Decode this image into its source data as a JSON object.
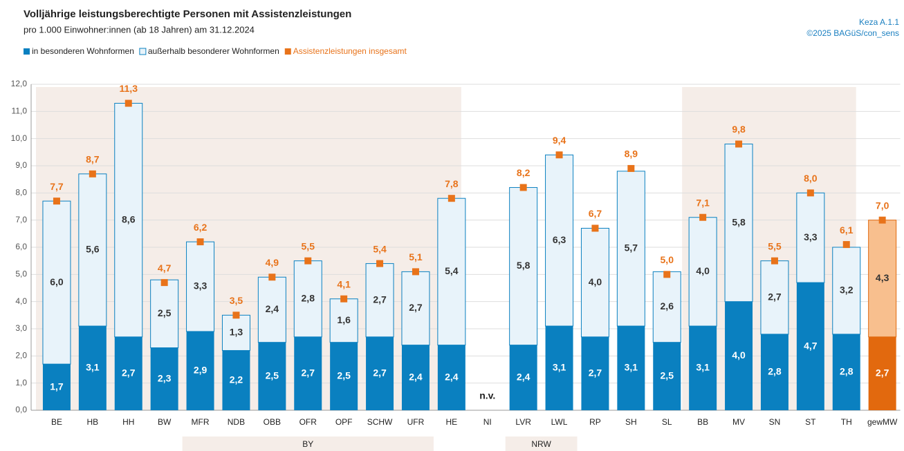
{
  "chart_data": {
    "type": "stacked_bar",
    "title": "Volljährige leistungsberechtigte Personen mit Assistenzleistungen",
    "subtitle": "pro 1.000 Einwohner:innen (ab 18 Jahren) am 31.12.2024",
    "source": [
      "Keza A.1.1",
      "©2025 BAGüS/con_sens"
    ],
    "categories": [
      "BE",
      "HB",
      "HH",
      "BW",
      "MFR",
      "NDB",
      "OBB",
      "OFR",
      "OPF",
      "SCHW",
      "UFR",
      "HE",
      "NI",
      "LVR",
      "LWL",
      "RP",
      "SH",
      "SL",
      "BB",
      "MV",
      "SN",
      "ST",
      "TH",
      "gewMW"
    ],
    "groups": [
      {
        "label": "BY",
        "from": "MFR",
        "to": "UFR"
      },
      {
        "label": "NRW",
        "from": "LVR",
        "to": "LWL"
      }
    ],
    "annotations": [
      {
        "text": "n.v.",
        "category": "NI"
      }
    ],
    "series": [
      {
        "name": "in besonderen Wohnformen",
        "color": "#0a80c0",
        "colors": [
          "#0a80c0",
          "#0a80c0",
          "#0a80c0",
          "#0a80c0",
          "#0a80c0",
          "#0a80c0",
          "#0a80c0",
          "#0a80c0",
          "#0a80c0",
          "#0a80c0",
          "#0a80c0",
          "#0a80c0",
          "#0a80c0",
          "#0a80c0",
          "#0a80c0",
          "#0a80c0",
          "#0a80c0",
          "#0a80c0",
          "#0a80c0",
          "#0a80c0",
          "#0a80c0",
          "#0a80c0",
          "#0a80c0",
          "#e2690e"
        ],
        "values": [
          1.7,
          3.1,
          2.7,
          2.3,
          2.9,
          2.2,
          2.5,
          2.7,
          2.5,
          2.7,
          2.4,
          2.4,
          null,
          2.4,
          3.1,
          2.7,
          3.1,
          2.5,
          3.1,
          4.0,
          2.8,
          4.7,
          2.8,
          2.7
        ],
        "value_labels": [
          "1,7",
          "3,1",
          "2,7",
          "2,3",
          "2,9",
          "2,2",
          "2,5",
          "2,7",
          "2,5",
          "2,7",
          "2,4",
          "2,4",
          null,
          "2,4",
          "3,1",
          "2,7",
          "3,1",
          "2,5",
          "3,1",
          "4,0",
          "2,8",
          "4,7",
          "2,8",
          "2,7"
        ]
      },
      {
        "name": "außerhalb besonderer Wohnformen",
        "color": "#e8f3fa",
        "colors": [
          "#e8f3fa",
          "#e8f3fa",
          "#e8f3fa",
          "#e8f3fa",
          "#e8f3fa",
          "#e8f3fa",
          "#e8f3fa",
          "#e8f3fa",
          "#e8f3fa",
          "#e8f3fa",
          "#e8f3fa",
          "#e8f3fa",
          "#e8f3fa",
          "#e8f3fa",
          "#e8f3fa",
          "#e8f3fa",
          "#e8f3fa",
          "#e8f3fa",
          "#e8f3fa",
          "#e8f3fa",
          "#e8f3fa",
          "#e8f3fa",
          "#e8f3fa",
          "#f8bf8e"
        ],
        "values": [
          6.0,
          5.6,
          8.6,
          2.5,
          3.3,
          1.3,
          2.4,
          2.8,
          1.6,
          2.7,
          2.7,
          5.4,
          null,
          5.8,
          6.3,
          4.0,
          5.7,
          2.6,
          4.0,
          5.8,
          2.7,
          3.3,
          3.2,
          4.3
        ],
        "value_labels": [
          "6,0",
          "5,6",
          "8,6",
          "2,5",
          "3,3",
          "1,3",
          "2,4",
          "2,8",
          "1,6",
          "2,7",
          "2,7",
          "5,4",
          null,
          "5,8",
          "6,3",
          "4,0",
          "5,7",
          "2,6",
          "4,0",
          "5,8",
          "2,7",
          "3,3",
          "3,2",
          "4,3"
        ]
      },
      {
        "name": "Assistenzleistungen insgesamt",
        "color": "#e8731a",
        "type": "marker",
        "values": [
          7.7,
          8.7,
          11.3,
          4.7,
          6.2,
          3.5,
          4.9,
          5.5,
          4.1,
          5.4,
          5.1,
          7.8,
          null,
          8.2,
          9.4,
          6.7,
          8.9,
          5.0,
          7.1,
          9.8,
          5.5,
          8.0,
          6.1,
          7.0
        ],
        "value_labels": [
          "7,7",
          "8,7",
          "11,3",
          "4,7",
          "6,2",
          "3,5",
          "4,9",
          "5,5",
          "4,1",
          "5,4",
          "5,1",
          "7,8",
          null,
          "8,2",
          "9,4",
          "6,7",
          "8,9",
          "5,0",
          "7,1",
          "9,8",
          "5,5",
          "8,0",
          "6,1",
          "7,0"
        ]
      }
    ],
    "ylim": [
      0,
      12
    ],
    "yticks": [
      {
        "value": 0,
        "label": "0,0"
      },
      {
        "value": 1,
        "label": "1,0"
      },
      {
        "value": 2,
        "label": "2,0"
      },
      {
        "value": 3,
        "label": "3,0"
      },
      {
        "value": 4,
        "label": "4,0"
      },
      {
        "value": 5,
        "label": "5,0"
      },
      {
        "value": 6,
        "label": "6,0"
      },
      {
        "value": 7,
        "label": "7,0"
      },
      {
        "value": 8,
        "label": "8,0"
      },
      {
        "value": 9,
        "label": "9,0"
      },
      {
        "value": 10,
        "label": "10,0"
      },
      {
        "value": 11,
        "label": "11,0"
      },
      {
        "value": 12,
        "label": "12,0"
      }
    ],
    "grid": true
  }
}
